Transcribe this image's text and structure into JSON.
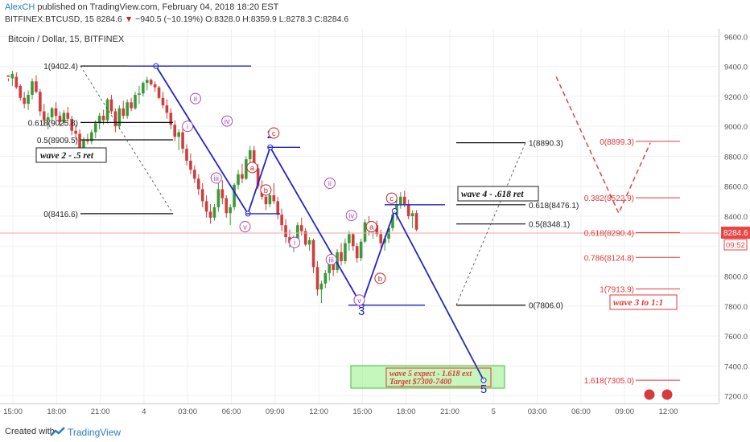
{
  "header": {
    "author": "AlexCH",
    "published": "published on TradingView.com, February 04, 2018 18:20 EST",
    "symbol": "BITFINEX:BTCUSD, 15",
    "last": "8284.6",
    "arrow": "▼",
    "change": "−940.5 (−10.19%)",
    "ohlc": "O:8328.0 H:8359.9 L:8278.3 C:8284.6"
  },
  "footer": {
    "created": "Created with",
    "brand": "TradingView"
  },
  "colors": {
    "wave": "#2323c8",
    "fib": "#111111",
    "red": "#e23838",
    "candle_up": "#3a9a36",
    "candle_down": "#cf3d3d",
    "label_purple": "#a64bb5",
    "label_red": "#c42626"
  },
  "chart_data": {
    "type": "candlestick",
    "title": "Bitcoin / Dollar, 15, BITFINEX",
    "ylim": [
      7150,
      9650
    ],
    "y_ticks": [
      "9600.0",
      "9400.0",
      "9200.0",
      "9000.0",
      "8800.0",
      "8600.0",
      "8400.0",
      "8200.0",
      "8000.0",
      "7800.0",
      "7600.0",
      "7400.0",
      "7200.0"
    ],
    "x_ticks": [
      "15:00",
      "18:00",
      "21:00",
      "4",
      "03:00",
      "06:00",
      "09:00",
      "12:00",
      "15:00",
      "18:00",
      "21:00",
      "5",
      "03:00",
      "06:00",
      "09:00",
      "12:00"
    ],
    "last_price": "8284.6",
    "countdown": "09:52",
    "candles_approx": [
      [
        8420,
        8400,
        8380,
        8410
      ],
      [
        8400,
        8450,
        8350,
        8430
      ],
      [
        8410,
        8440,
        8330,
        8340
      ],
      [
        8350,
        8360,
        8250,
        8270
      ],
      [
        8270,
        8310,
        8200,
        8230
      ],
      [
        8230,
        8320,
        8190,
        8290
      ],
      [
        8290,
        8400,
        8260,
        8380
      ],
      [
        8380,
        8420,
        8300,
        8310
      ],
      [
        8310,
        8330,
        8150,
        8180
      ],
      [
        8180,
        8230,
        8080,
        8120
      ],
      [
        8120,
        8170,
        8060,
        8140
      ],
      [
        8140,
        8210,
        8100,
        8200
      ],
      [
        8200,
        8240,
        8120,
        8150
      ],
      [
        8150,
        8180,
        8080,
        8110
      ],
      [
        8110,
        8190,
        8090,
        8170
      ],
      [
        8170,
        8210,
        8110,
        8130
      ],
      [
        8130,
        8150,
        8020,
        8050
      ],
      [
        8050,
        8090,
        7990,
        8030
      ],
      [
        8030,
        8060,
        7900,
        7930
      ],
      [
        7930,
        8010,
        7900,
        7990
      ],
      [
        7990,
        8030,
        7960,
        7980
      ],
      [
        7980,
        8060,
        7960,
        8040
      ],
      [
        8040,
        8120,
        8000,
        8100
      ],
      [
        8100,
        8170,
        8060,
        8150
      ],
      [
        8150,
        8190,
        8090,
        8120
      ],
      [
        8120,
        8270,
        8100,
        8260
      ],
      [
        8260,
        8290,
        8160,
        8180
      ],
      [
        8180,
        8200,
        8040,
        8080
      ],
      [
        8080,
        8220,
        8060,
        8200
      ],
      [
        8200,
        8250,
        8130,
        8150
      ],
      [
        8150,
        8260,
        8130,
        8240
      ],
      [
        8240,
        8270,
        8180,
        8200
      ],
      [
        8200,
        8310,
        8190,
        8290
      ],
      [
        8290,
        8350,
        8230,
        8300
      ],
      [
        8300,
        8380,
        8280,
        8370
      ],
      [
        8370,
        8410,
        8320,
        8390
      ],
      [
        8390,
        8400,
        8350,
        8360
      ],
      [
        8360,
        8380,
        8310,
        8340
      ],
      [
        8340,
        8350,
        8260,
        8270
      ],
      [
        8270,
        8310,
        8200,
        8220
      ],
      [
        8220,
        8260,
        8130,
        8170
      ],
      [
        8170,
        8200,
        8060,
        8090
      ],
      [
        8090,
        8120,
        7980,
        8010
      ],
      [
        8010,
        8060,
        7920,
        8040
      ],
      [
        8040,
        8080,
        7900,
        7930
      ],
      [
        7930,
        7960,
        7820,
        7850
      ],
      [
        7850,
        7900,
        7760,
        7790
      ],
      [
        7790,
        7820,
        7700,
        7730
      ],
      [
        7730,
        7760,
        7620,
        7660
      ],
      [
        7660,
        7700,
        7540,
        7580
      ],
      [
        7580,
        7620,
        7470,
        7510
      ],
      [
        7510,
        7560,
        7430,
        7470
      ],
      [
        7470,
        7560,
        7450,
        7540
      ],
      [
        7540,
        7700,
        7510,
        7660
      ],
      [
        7660,
        7720,
        7560,
        7600
      ],
      [
        7600,
        7620,
        7470,
        7500
      ],
      [
        7500,
        7560,
        7420,
        7540
      ],
      [
        7540,
        7700,
        7520,
        7690
      ],
      [
        7690,
        7790,
        7660,
        7760
      ],
      [
        7760,
        7830,
        7700,
        7730
      ],
      [
        7730,
        7880,
        7720,
        7860
      ],
      [
        7860,
        7950,
        7830,
        7920
      ],
      [
        7920,
        7950,
        7780,
        7800
      ],
      [
        7800,
        7830,
        7660,
        7680
      ],
      [
        7680,
        7720,
        7590,
        7610
      ],
      [
        7610,
        7650,
        7520,
        7560
      ],
      [
        7560,
        7640,
        7540,
        7620
      ],
      [
        7620,
        7700,
        7560,
        7580
      ],
      [
        7580,
        7610,
        7460,
        7490
      ],
      [
        7490,
        7530,
        7380,
        7420
      ],
      [
        7420,
        7460,
        7300,
        7340
      ],
      [
        7340,
        7390,
        7270,
        7300
      ],
      [
        7300,
        7350,
        7240,
        7330
      ],
      [
        7330,
        7440,
        7300,
        7420
      ],
      [
        7420,
        7470,
        7350,
        7380
      ],
      [
        7380,
        7400,
        7280,
        7290
      ],
      [
        7290,
        7340,
        7250,
        7320
      ],
      [
        7320,
        7330,
        7100,
        7140
      ],
      [
        7140,
        7180,
        6950,
        6990
      ],
      [
        6990,
        7050,
        6900,
        7030
      ],
      [
        7030,
        7120,
        7000,
        7100
      ],
      [
        7100,
        7180,
        7050,
        7160
      ],
      [
        7160,
        7200,
        7080,
        7120
      ],
      [
        7120,
        7260,
        7100,
        7240
      ],
      [
        7240,
        7300,
        7150,
        7180
      ],
      [
        7180,
        7330,
        7160,
        7300
      ],
      [
        7300,
        7380,
        7250,
        7360
      ],
      [
        7360,
        7370,
        7250,
        7280
      ],
      [
        7280,
        7300,
        7170,
        7200
      ],
      [
        7200,
        7330,
        7180,
        7310
      ],
      [
        7310,
        7460,
        7300,
        7440
      ],
      [
        7440,
        7480,
        7350,
        7380
      ],
      [
        7380,
        7440,
        7330,
        7420
      ],
      [
        7420,
        7450,
        7340,
        7360
      ],
      [
        7360,
        7390,
        7270,
        7300
      ],
      [
        7300,
        7350,
        7250,
        7330
      ],
      [
        7330,
        7420,
        7300,
        7400
      ],
      [
        7400,
        7510,
        7380,
        7490
      ],
      [
        7490,
        7580,
        7450,
        7560
      ],
      [
        7560,
        7640,
        7530,
        7610
      ],
      [
        7610,
        7650,
        7540,
        7560
      ],
      [
        7560,
        7590,
        7460,
        7480
      ],
      [
        7480,
        7520,
        7400,
        7500
      ],
      [
        7500,
        7520,
        7380,
        7390
      ]
    ],
    "fib_left": [
      {
        "label": "1(9402.4)",
        "value": 9402.4
      },
      {
        "label": "0.618(9025.8)",
        "value": 9025.8
      },
      {
        "label": "0.5(8909.5)",
        "value": 8909.5
      },
      {
        "label": "0(8416.6)",
        "value": 8416.6
      }
    ],
    "fib_mid": [
      {
        "label": "1(8890.3)",
        "value": 8890.3
      },
      {
        "label": "0.618(8476.1)",
        "value": 8476.1
      },
      {
        "label": "0.5(8348.1)",
        "value": 8348.1
      },
      {
        "label": "0(7806.0)",
        "value": 7806.0
      }
    ],
    "fib_right": [
      {
        "label": "0(8899.3)",
        "value": 8899.3
      },
      {
        "label": "0.382(8522.9)",
        "value": 8522.9
      },
      {
        "label": "0.618(8290.4)",
        "value": 8290.4
      },
      {
        "label": "0.786(8124.8)",
        "value": 8124.8
      },
      {
        "label": "1(7913.9)",
        "value": 7913.9
      },
      {
        "label": "1.618(7305.0)",
        "value": 7305.0
      }
    ],
    "wave_path": [
      {
        "t": 0.217,
        "y": 9402.4
      },
      {
        "t": 0.345,
        "y": 8416.6
      },
      {
        "t": 0.376,
        "y": 8859.9
      },
      {
        "t": 0.503,
        "y": 7806.0
      },
      {
        "t": 0.549,
        "y": 8435.0
      },
      {
        "t": 0.673,
        "y": 7305.0
      }
    ],
    "wave_labels": [
      {
        "text": "2",
        "t": 0.376,
        "y": 8920,
        "color": "wave"
      },
      {
        "text": "3",
        "t": 0.503,
        "y": 7740,
        "color": "wave"
      },
      {
        "text": "4",
        "t": 0.549,
        "y": 8490,
        "color": "wave"
      },
      {
        "text": "5",
        "t": 0.673,
        "y": 7220,
        "color": "wave"
      }
    ],
    "sub_labels": [
      {
        "text": "i",
        "t": 0.261,
        "y": 9000,
        "color": "label_purple"
      },
      {
        "text": "ii",
        "t": 0.272,
        "y": 9185,
        "color": "label_purple"
      },
      {
        "text": "iii",
        "t": 0.301,
        "y": 8655,
        "color": "label_purple"
      },
      {
        "text": "iv",
        "t": 0.316,
        "y": 9035,
        "color": "label_purple"
      },
      {
        "text": "v",
        "t": 0.341,
        "y": 8330,
        "color": "label_purple"
      },
      {
        "text": "a",
        "t": 0.351,
        "y": 8725,
        "color": "label_red"
      },
      {
        "text": "b",
        "t": 0.37,
        "y": 8575,
        "color": "label_red"
      },
      {
        "text": "c",
        "t": 0.381,
        "y": 8955,
        "color": "label_red"
      },
      {
        "text": "i",
        "t": 0.41,
        "y": 8225,
        "color": "label_purple"
      },
      {
        "text": "ii",
        "t": 0.459,
        "y": 8620,
        "color": "label_purple"
      },
      {
        "text": "iii",
        "t": 0.461,
        "y": 8110,
        "color": "label_purple"
      },
      {
        "text": "iv",
        "t": 0.489,
        "y": 8405,
        "color": "label_purple"
      },
      {
        "text": "v",
        "t": 0.5,
        "y": 7840,
        "color": "label_purple"
      },
      {
        "text": "a",
        "t": 0.517,
        "y": 8330,
        "color": "label_red"
      },
      {
        "text": "b",
        "t": 0.529,
        "y": 7985,
        "color": "label_red"
      },
      {
        "text": "c",
        "t": 0.545,
        "y": 8520,
        "color": "label_red"
      }
    ],
    "annotations": {
      "wave2": "wave 2 - .5 ret",
      "wave4": "wave 4 - .618 ret",
      "wave3": "wave 3 to 1:1",
      "target1": "wave 5 expect - 1.618 ext",
      "target2": "Target $7300-7400"
    },
    "projection": {
      "dashed_points": [
        {
          "t": 0.774,
          "y": 9330
        },
        {
          "t": 0.861,
          "y": 8420
        },
        {
          "t": 0.905,
          "y": 8890
        }
      ]
    }
  }
}
